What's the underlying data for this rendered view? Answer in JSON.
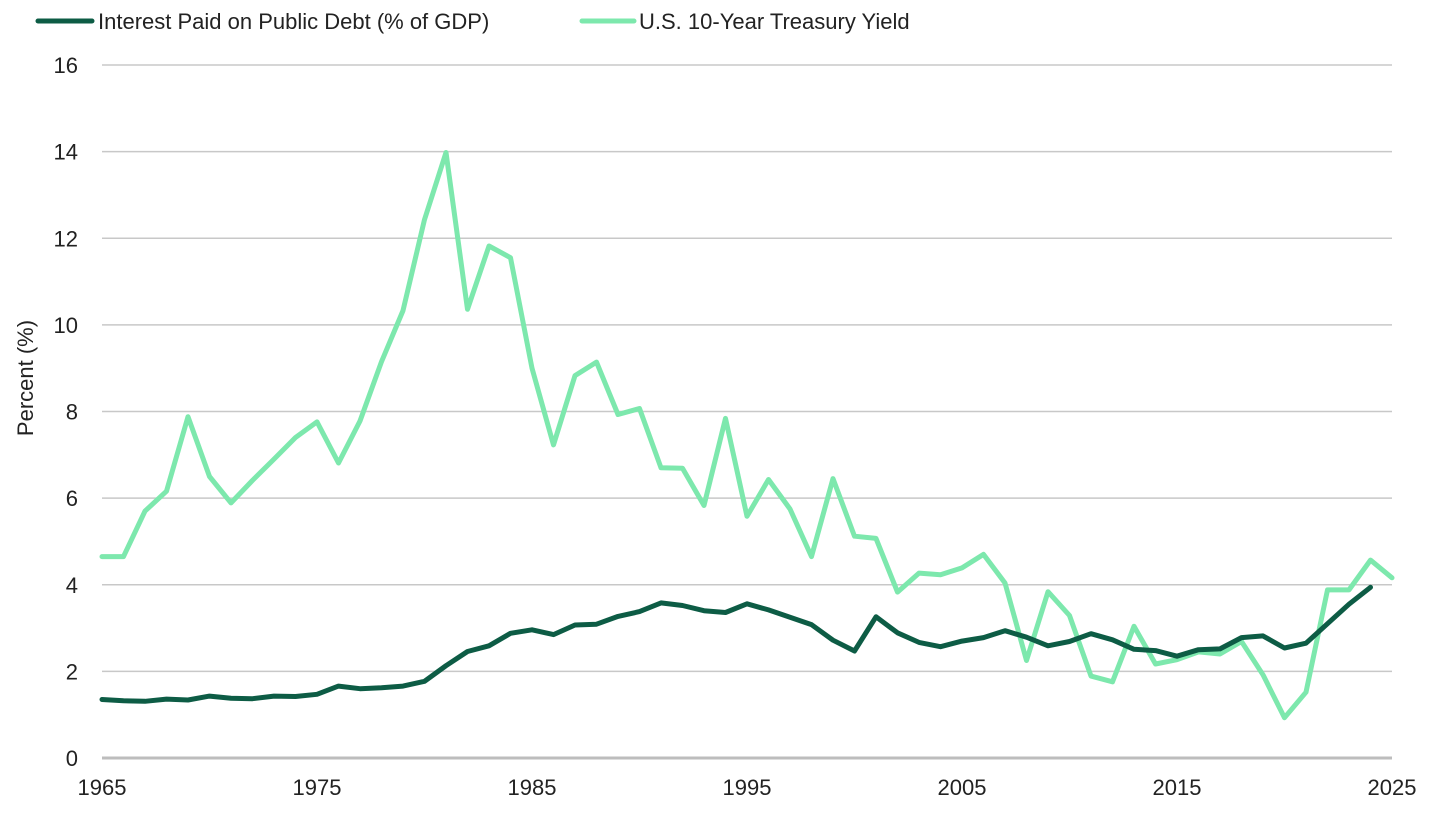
{
  "chart_data": {
    "type": "line",
    "xlabel": "",
    "ylabel": "Percent (%)",
    "xlim": [
      1965,
      2025
    ],
    "ylim": [
      0,
      16
    ],
    "x_ticks": [
      1965,
      1975,
      1985,
      1995,
      2005,
      2015,
      2025
    ],
    "y_ticks": [
      0,
      2,
      4,
      6,
      8,
      10,
      12,
      14,
      16
    ],
    "grid": true,
    "legend_position": "top-left",
    "series": [
      {
        "name": "Interest Paid on Public Debt (% of GDP)",
        "color": "#0d5c45",
        "x": [
          1965,
          1966,
          1967,
          1968,
          1969,
          1970,
          1971,
          1972,
          1973,
          1974,
          1975,
          1976,
          1977,
          1978,
          1979,
          1980,
          1981,
          1982,
          1983,
          1984,
          1985,
          1986,
          1987,
          1988,
          1989,
          1990,
          1991,
          1992,
          1993,
          1994,
          1995,
          1996,
          1997,
          1998,
          1999,
          2000,
          2001,
          2002,
          2003,
          2004,
          2005,
          2006,
          2007,
          2008,
          2009,
          2010,
          2011,
          2012,
          2013,
          2014,
          2015,
          2016,
          2017,
          2018,
          2019,
          2020,
          2021,
          2022,
          2023,
          2024
        ],
        "values": [
          1.35,
          1.32,
          1.31,
          1.36,
          1.34,
          1.43,
          1.38,
          1.37,
          1.43,
          1.42,
          1.47,
          1.66,
          1.6,
          1.62,
          1.66,
          1.77,
          2.13,
          2.46,
          2.59,
          2.88,
          2.96,
          2.85,
          3.07,
          3.09,
          3.27,
          3.38,
          3.58,
          3.52,
          3.4,
          3.36,
          3.56,
          3.42,
          3.25,
          3.08,
          2.72,
          2.47,
          3.26,
          2.89,
          2.67,
          2.57,
          2.7,
          2.78,
          2.94,
          2.79,
          2.59,
          2.69,
          2.87,
          2.73,
          2.51,
          2.48,
          2.35,
          2.5,
          2.52,
          2.78,
          2.82,
          2.54,
          2.65,
          3.1,
          3.55,
          3.94
        ]
      },
      {
        "name": "U.S. 10-Year Treasury Yield",
        "color": "#7de8ad",
        "x": [
          1965,
          1966,
          1967,
          1968,
          1969,
          1970,
          1971,
          1972,
          1973,
          1974,
          1975,
          1976,
          1977,
          1978,
          1979,
          1980,
          1981,
          1982,
          1983,
          1984,
          1985,
          1986,
          1987,
          1988,
          1989,
          1990,
          1991,
          1992,
          1993,
          1994,
          1995,
          1996,
          1997,
          1998,
          1999,
          2000,
          2001,
          2002,
          2003,
          2004,
          2005,
          2006,
          2007,
          2008,
          2009,
          2010,
          2011,
          2012,
          2013,
          2014,
          2015,
          2016,
          2017,
          2018,
          2019,
          2020,
          2021,
          2022,
          2023,
          2024,
          2025
        ],
        "values": [
          4.65,
          4.65,
          5.7,
          6.16,
          7.88,
          6.5,
          5.89,
          6.41,
          6.9,
          7.4,
          7.76,
          6.81,
          7.78,
          9.15,
          10.33,
          12.43,
          13.98,
          10.36,
          11.82,
          11.55,
          9.0,
          7.23,
          8.83,
          9.14,
          7.93,
          8.07,
          6.7,
          6.69,
          5.83,
          7.84,
          5.58,
          6.43,
          5.75,
          4.65,
          6.45,
          5.12,
          5.07,
          3.83,
          4.27,
          4.23,
          4.39,
          4.7,
          4.04,
          2.25,
          3.84,
          3.29,
          1.89,
          1.76,
          3.04,
          2.17,
          2.27,
          2.45,
          2.4,
          2.69,
          1.92,
          0.93,
          1.52,
          3.88,
          3.88,
          4.57,
          4.16
        ]
      }
    ]
  }
}
